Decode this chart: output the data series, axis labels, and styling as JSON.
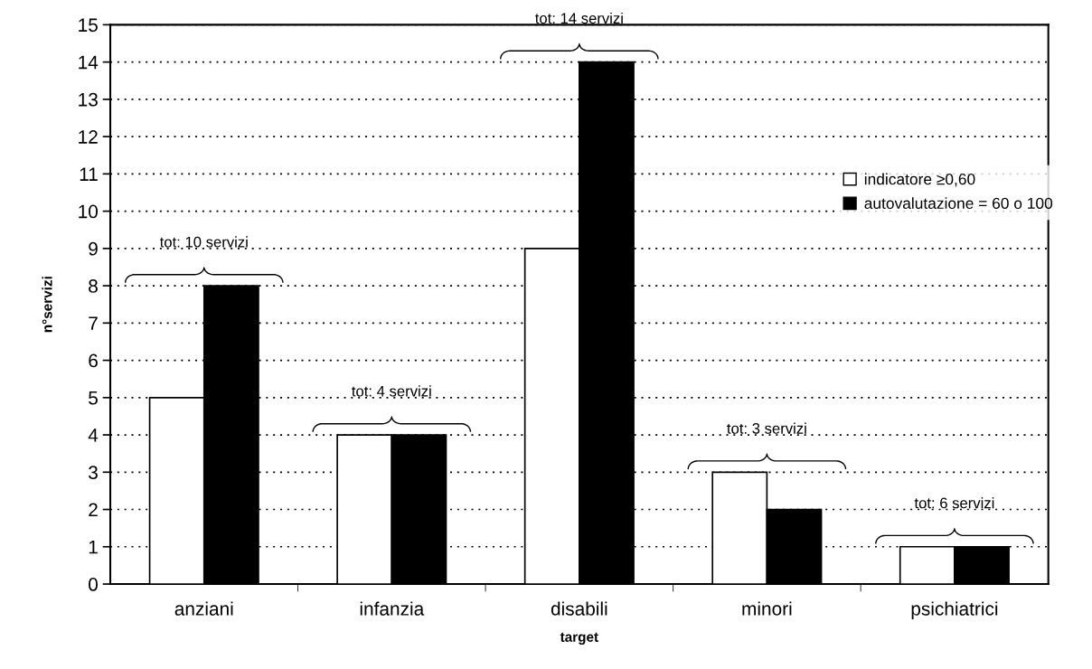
{
  "chart_data": {
    "type": "bar",
    "xlabel": "target",
    "ylabel": "n°servizi",
    "categories": [
      "anziani",
      "infanzia",
      "disabili",
      "minori",
      "psichiatrici"
    ],
    "series": [
      {
        "name": "indicatore ≥0,60",
        "color": "#ffffff",
        "values": [
          5,
          4,
          9,
          3,
          1
        ]
      },
      {
        "name": "autovalutazione = 60 o 100",
        "color": "#000000",
        "values": [
          8,
          4,
          14,
          2,
          1
        ]
      }
    ],
    "ylim": [
      0,
      15
    ],
    "yticks": [
      0,
      1,
      2,
      3,
      4,
      5,
      6,
      7,
      8,
      9,
      10,
      11,
      12,
      13,
      14,
      15
    ],
    "grid": "y",
    "legend": "right",
    "annotations": [
      {
        "text": "tot: 10 servizi",
        "x": "anziani",
        "y": 8
      },
      {
        "text": "tot: 4 servizi",
        "x": "infanzia",
        "y": 4
      },
      {
        "text": "tot: 14 servizi",
        "x": "disabili",
        "y": 14
      },
      {
        "text": "tot: 3 servizi",
        "x": "minori",
        "y": 3
      },
      {
        "text": "tot: 6 servizi",
        "x": "psichiatrici",
        "y": 1
      }
    ]
  }
}
